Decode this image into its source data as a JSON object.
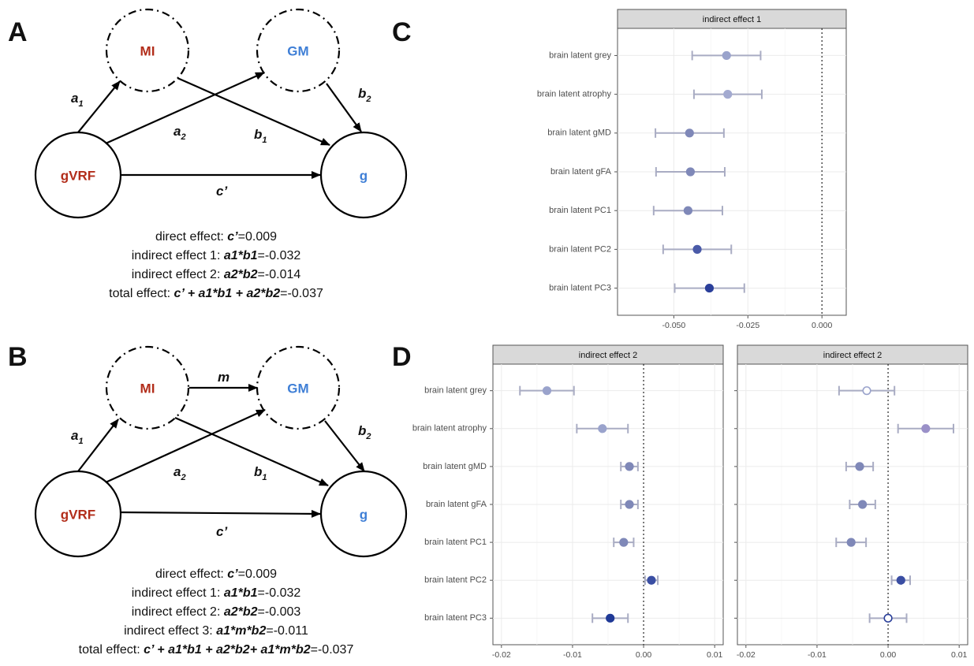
{
  "panels": {
    "a": "A",
    "b": "B",
    "c": "C",
    "d": "D"
  },
  "nodes": {
    "mi": "MI",
    "gm": "GM",
    "gvrf": "gVRF",
    "g": "g"
  },
  "colors": {
    "mi_text": "#b22d1a",
    "gvrf_text": "#b22d1a",
    "gm_text": "#3f7fd6",
    "g_text": "#3f7fd6"
  },
  "coefs": {
    "a": "a",
    "b": "b",
    "c_prime": "c’",
    "m": "m",
    "sub1": "1",
    "sub2": "2"
  },
  "effects_a": [
    {
      "label": "direct effect: ",
      "formula": "c’",
      "value": "=0.009"
    },
    {
      "label": "indirect effect 1: ",
      "formula": "a1*b1",
      "value": "=-0.032"
    },
    {
      "label": "indirect effect 2: ",
      "formula": "a2*b2",
      "value": "=-0.014"
    },
    {
      "label": "total effect: ",
      "formula": "c’ + a1*b1 + a2*b2",
      "value": "=-0.037"
    }
  ],
  "effects_b": [
    {
      "label": "direct effect: ",
      "formula": "c’",
      "value": "=0.009"
    },
    {
      "label": "indirect effect 1: ",
      "formula": "a1*b1",
      "value": "=-0.032"
    },
    {
      "label": "indirect effect 2: ",
      "formula": "a2*b2",
      "value": "=-0.003"
    },
    {
      "label": "indirect effect 3: ",
      "formula": "a1*m*b2",
      "value": "=-0.011"
    },
    {
      "label": "total effect: ",
      "formula": "c’ + a1*b1 + a2*b2+ a1*m*b2",
      "value": "=-0.037"
    }
  ],
  "chart_data": [
    {
      "type": "scatter",
      "panel": "C",
      "title": "indirect effect 1",
      "categories": [
        "brain latent grey",
        "brain latent atrophy",
        "brain latent gMD",
        "brain latent gFA",
        "brain latent PC1",
        "brain latent PC2",
        "brain latent PC3"
      ],
      "values": [
        -0.0322,
        -0.0318,
        -0.0447,
        -0.0444,
        -0.0452,
        -0.0421,
        -0.038
      ],
      "ci_low": [
        -0.0438,
        -0.0432,
        -0.0562,
        -0.056,
        -0.0568,
        -0.0536,
        -0.0497
      ],
      "ci_high": [
        -0.0207,
        -0.0203,
        -0.0331,
        -0.0328,
        -0.0336,
        -0.0306,
        -0.0262
      ],
      "point_colors": [
        "#9aa3cc",
        "#a3aad0",
        "#7f88b8",
        "#7f88b8",
        "#7f88b8",
        "#4a5aa8",
        "#2a3f9a"
      ],
      "xlim": [
        -0.069,
        0.0082
      ],
      "xticks": [
        -0.05,
        -0.025,
        0.0
      ],
      "xtick_labels": [
        "-0.050",
        "-0.025",
        "0.000"
      ]
    },
    {
      "type": "scatter",
      "panel": "D-left",
      "title": "indirect effect 2",
      "categories": [
        "brain latent grey",
        "brain latent atrophy",
        "brain latent gMD",
        "brain latent gFA",
        "brain latent PC1",
        "brain latent PC2",
        "brain latent PC3"
      ],
      "values": [
        -0.0136,
        -0.0058,
        -0.002,
        -0.002,
        -0.0028,
        0.0011,
        -0.0047
      ],
      "ci_low": [
        -0.0174,
        -0.0094,
        -0.0032,
        -0.0032,
        -0.0042,
        0.0002,
        -0.0072
      ],
      "ci_high": [
        -0.0098,
        -0.0022,
        -0.0008,
        -0.0008,
        -0.0014,
        0.002,
        -0.0022
      ],
      "point_colors": [
        "#9aa3cc",
        "#9aa3cc",
        "#7f88b8",
        "#7f88b8",
        "#7f88b8",
        "#3a4ea3",
        "#1f3996"
      ],
      "xlim": [
        -0.0212,
        0.0112
      ],
      "xticks": [
        -0.02,
        -0.01,
        0.0,
        0.01
      ],
      "xtick_labels": [
        "-0.02",
        "-0.01",
        "0.00",
        "0.01"
      ]
    },
    {
      "type": "scatter",
      "panel": "D-right",
      "title": "indirect effect 2",
      "categories": [
        "brain latent grey",
        "brain latent atrophy",
        "brain latent gMD",
        "brain latent gFA",
        "brain latent PC1",
        "brain latent PC2",
        "brain latent PC3"
      ],
      "values": [
        -0.003,
        0.0053,
        -0.004,
        -0.0036,
        -0.0052,
        0.0018,
        0.0
      ],
      "ci_low": [
        -0.0069,
        0.0014,
        -0.0059,
        -0.0054,
        -0.0073,
        0.0005,
        -0.0026
      ],
      "ci_high": [
        0.0009,
        0.0092,
        -0.0021,
        -0.0018,
        -0.0031,
        0.0031,
        0.0026
      ],
      "point_colors": [
        "#ffffff",
        "#9a90c8",
        "#7f88b8",
        "#7f88b8",
        "#7f88b8",
        "#3a4ea3",
        "#ffffff"
      ],
      "point_outlines": [
        "#9aa3cc",
        "#9a90c8",
        "#7f88b8",
        "#7f88b8",
        "#7f88b8",
        "#3a4ea3",
        "#2a3f9a"
      ],
      "xlim": [
        -0.0212,
        0.0112
      ],
      "xticks": [
        -0.02,
        -0.01,
        0.0,
        0.01
      ],
      "xtick_labels": [
        "-0.02",
        "-0.01",
        "0.00",
        "0.01"
      ]
    }
  ]
}
